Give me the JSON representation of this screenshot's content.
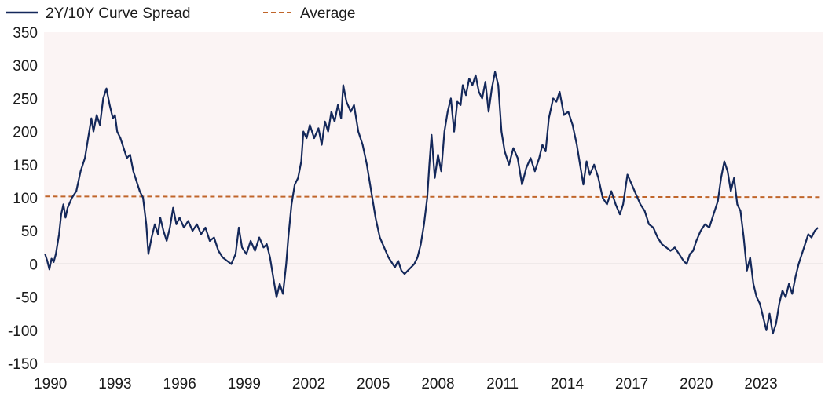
{
  "chart_data": {
    "type": "line",
    "title": "",
    "xlabel": "",
    "ylabel": "",
    "xlim": [
      1989.7,
      2025.9
    ],
    "ylim": [
      -150,
      350
    ],
    "grid": false,
    "legend_position": "top-left",
    "y_ticks": [
      350,
      300,
      250,
      200,
      150,
      100,
      50,
      0,
      -50,
      -100,
      -150
    ],
    "x_ticks": [
      1990,
      1993,
      1996,
      1999,
      2002,
      2005,
      2008,
      2011,
      2014,
      2017,
      2020,
      2023
    ],
    "colors": {
      "spread": "#14285a",
      "average": "#c0652a",
      "zero_line": "#9a9a9a",
      "plot_bg": "#fbf4f4"
    },
    "legend": {
      "spread_label": "2Y/10Y Curve Spread",
      "average_label": "Average"
    },
    "series": [
      {
        "name": "2Y/10Y Curve Spread",
        "style": "solid",
        "points": [
          [
            1989.75,
            15
          ],
          [
            1989.85,
            5
          ],
          [
            1989.95,
            -8
          ],
          [
            1990.05,
            8
          ],
          [
            1990.15,
            3
          ],
          [
            1990.25,
            15
          ],
          [
            1990.4,
            45
          ],
          [
            1990.5,
            75
          ],
          [
            1990.6,
            90
          ],
          [
            1990.7,
            70
          ],
          [
            1990.8,
            85
          ],
          [
            1991.0,
            100
          ],
          [
            1991.2,
            110
          ],
          [
            1991.4,
            140
          ],
          [
            1991.6,
            160
          ],
          [
            1991.75,
            190
          ],
          [
            1991.9,
            220
          ],
          [
            1992.0,
            200
          ],
          [
            1992.15,
            225
          ],
          [
            1992.3,
            210
          ],
          [
            1992.45,
            250
          ],
          [
            1992.6,
            265
          ],
          [
            1992.75,
            240
          ],
          [
            1992.9,
            220
          ],
          [
            1993.0,
            225
          ],
          [
            1993.1,
            200
          ],
          [
            1993.25,
            190
          ],
          [
            1993.4,
            175
          ],
          [
            1993.55,
            160
          ],
          [
            1993.7,
            165
          ],
          [
            1993.85,
            140
          ],
          [
            1994.0,
            125
          ],
          [
            1994.15,
            110
          ],
          [
            1994.3,
            100
          ],
          [
            1994.45,
            60
          ],
          [
            1994.55,
            15
          ],
          [
            1994.7,
            40
          ],
          [
            1994.85,
            60
          ],
          [
            1995.0,
            45
          ],
          [
            1995.1,
            70
          ],
          [
            1995.25,
            50
          ],
          [
            1995.4,
            35
          ],
          [
            1995.55,
            55
          ],
          [
            1995.7,
            85
          ],
          [
            1995.85,
            60
          ],
          [
            1996.0,
            70
          ],
          [
            1996.2,
            55
          ],
          [
            1996.4,
            65
          ],
          [
            1996.6,
            50
          ],
          [
            1996.8,
            60
          ],
          [
            1997.0,
            45
          ],
          [
            1997.2,
            55
          ],
          [
            1997.4,
            35
          ],
          [
            1997.6,
            40
          ],
          [
            1997.8,
            20
          ],
          [
            1998.0,
            10
          ],
          [
            1998.2,
            5
          ],
          [
            1998.4,
            0
          ],
          [
            1998.6,
            15
          ],
          [
            1998.75,
            55
          ],
          [
            1998.9,
            25
          ],
          [
            1999.1,
            15
          ],
          [
            1999.3,
            35
          ],
          [
            1999.5,
            20
          ],
          [
            1999.7,
            40
          ],
          [
            1999.9,
            25
          ],
          [
            2000.05,
            30
          ],
          [
            2000.2,
            10
          ],
          [
            2000.35,
            -20
          ],
          [
            2000.5,
            -50
          ],
          [
            2000.65,
            -30
          ],
          [
            2000.8,
            -45
          ],
          [
            2000.95,
            0
          ],
          [
            2001.05,
            40
          ],
          [
            2001.2,
            90
          ],
          [
            2001.35,
            120
          ],
          [
            2001.5,
            130
          ],
          [
            2001.65,
            155
          ],
          [
            2001.75,
            200
          ],
          [
            2001.9,
            190
          ],
          [
            2002.05,
            210
          ],
          [
            2002.25,
            190
          ],
          [
            2002.45,
            205
          ],
          [
            2002.6,
            180
          ],
          [
            2002.75,
            215
          ],
          [
            2002.9,
            200
          ],
          [
            2003.05,
            230
          ],
          [
            2003.2,
            215
          ],
          [
            2003.35,
            240
          ],
          [
            2003.5,
            220
          ],
          [
            2003.6,
            270
          ],
          [
            2003.75,
            245
          ],
          [
            2003.95,
            230
          ],
          [
            2004.1,
            240
          ],
          [
            2004.3,
            200
          ],
          [
            2004.5,
            180
          ],
          [
            2004.7,
            150
          ],
          [
            2004.9,
            110
          ],
          [
            2005.1,
            70
          ],
          [
            2005.3,
            40
          ],
          [
            2005.5,
            25
          ],
          [
            2005.7,
            10
          ],
          [
            2005.9,
            0
          ],
          [
            2006.0,
            -5
          ],
          [
            2006.15,
            5
          ],
          [
            2006.3,
            -10
          ],
          [
            2006.45,
            -15
          ],
          [
            2006.6,
            -10
          ],
          [
            2006.75,
            -5
          ],
          [
            2006.9,
            0
          ],
          [
            2007.05,
            10
          ],
          [
            2007.2,
            30
          ],
          [
            2007.35,
            60
          ],
          [
            2007.5,
            100
          ],
          [
            2007.6,
            150
          ],
          [
            2007.7,
            195
          ],
          [
            2007.85,
            130
          ],
          [
            2008.0,
            165
          ],
          [
            2008.15,
            140
          ],
          [
            2008.3,
            200
          ],
          [
            2008.45,
            230
          ],
          [
            2008.6,
            250
          ],
          [
            2008.75,
            200
          ],
          [
            2008.9,
            245
          ],
          [
            2009.05,
            240
          ],
          [
            2009.15,
            270
          ],
          [
            2009.3,
            255
          ],
          [
            2009.45,
            280
          ],
          [
            2009.6,
            270
          ],
          [
            2009.75,
            285
          ],
          [
            2009.9,
            260
          ],
          [
            2010.05,
            250
          ],
          [
            2010.2,
            275
          ],
          [
            2010.35,
            230
          ],
          [
            2010.5,
            265
          ],
          [
            2010.65,
            290
          ],
          [
            2010.8,
            270
          ],
          [
            2010.95,
            200
          ],
          [
            2011.1,
            170
          ],
          [
            2011.3,
            150
          ],
          [
            2011.5,
            175
          ],
          [
            2011.7,
            160
          ],
          [
            2011.9,
            120
          ],
          [
            2012.1,
            145
          ],
          [
            2012.3,
            160
          ],
          [
            2012.5,
            140
          ],
          [
            2012.7,
            160
          ],
          [
            2012.85,
            180
          ],
          [
            2013.0,
            170
          ],
          [
            2013.15,
            220
          ],
          [
            2013.35,
            250
          ],
          [
            2013.5,
            245
          ],
          [
            2013.65,
            260
          ],
          [
            2013.85,
            225
          ],
          [
            2014.05,
            230
          ],
          [
            2014.25,
            210
          ],
          [
            2014.45,
            180
          ],
          [
            2014.6,
            150
          ],
          [
            2014.75,
            120
          ],
          [
            2014.9,
            155
          ],
          [
            2015.05,
            135
          ],
          [
            2015.25,
            150
          ],
          [
            2015.45,
            130
          ],
          [
            2015.65,
            100
          ],
          [
            2015.85,
            90
          ],
          [
            2016.05,
            110
          ],
          [
            2016.25,
            90
          ],
          [
            2016.45,
            75
          ],
          [
            2016.6,
            90
          ],
          [
            2016.8,
            135
          ],
          [
            2017.0,
            120
          ],
          [
            2017.2,
            105
          ],
          [
            2017.4,
            90
          ],
          [
            2017.6,
            80
          ],
          [
            2017.8,
            60
          ],
          [
            2018.0,
            55
          ],
          [
            2018.2,
            40
          ],
          [
            2018.4,
            30
          ],
          [
            2018.6,
            25
          ],
          [
            2018.8,
            20
          ],
          [
            2019.0,
            25
          ],
          [
            2019.2,
            15
          ],
          [
            2019.4,
            5
          ],
          [
            2019.55,
            0
          ],
          [
            2019.7,
            15
          ],
          [
            2019.85,
            20
          ],
          [
            2020.0,
            35
          ],
          [
            2020.2,
            50
          ],
          [
            2020.4,
            60
          ],
          [
            2020.6,
            55
          ],
          [
            2020.8,
            75
          ],
          [
            2021.0,
            95
          ],
          [
            2021.15,
            130
          ],
          [
            2021.3,
            155
          ],
          [
            2021.45,
            140
          ],
          [
            2021.6,
            110
          ],
          [
            2021.75,
            130
          ],
          [
            2021.9,
            90
          ],
          [
            2022.05,
            80
          ],
          [
            2022.2,
            40
          ],
          [
            2022.35,
            -10
          ],
          [
            2022.5,
            10
          ],
          [
            2022.65,
            -30
          ],
          [
            2022.8,
            -50
          ],
          [
            2022.95,
            -60
          ],
          [
            2023.1,
            -80
          ],
          [
            2023.25,
            -100
          ],
          [
            2023.4,
            -75
          ],
          [
            2023.55,
            -105
          ],
          [
            2023.7,
            -90
          ],
          [
            2023.85,
            -60
          ],
          [
            2024.0,
            -40
          ],
          [
            2024.15,
            -50
          ],
          [
            2024.3,
            -30
          ],
          [
            2024.45,
            -45
          ],
          [
            2024.6,
            -20
          ],
          [
            2024.75,
            0
          ],
          [
            2024.9,
            15
          ],
          [
            2025.05,
            30
          ],
          [
            2025.2,
            45
          ],
          [
            2025.35,
            40
          ],
          [
            2025.5,
            50
          ],
          [
            2025.65,
            55
          ]
        ]
      },
      {
        "name": "Average",
        "style": "dashed",
        "points": [
          [
            1989.75,
            102
          ],
          [
            2025.9,
            101
          ]
        ]
      }
    ]
  }
}
